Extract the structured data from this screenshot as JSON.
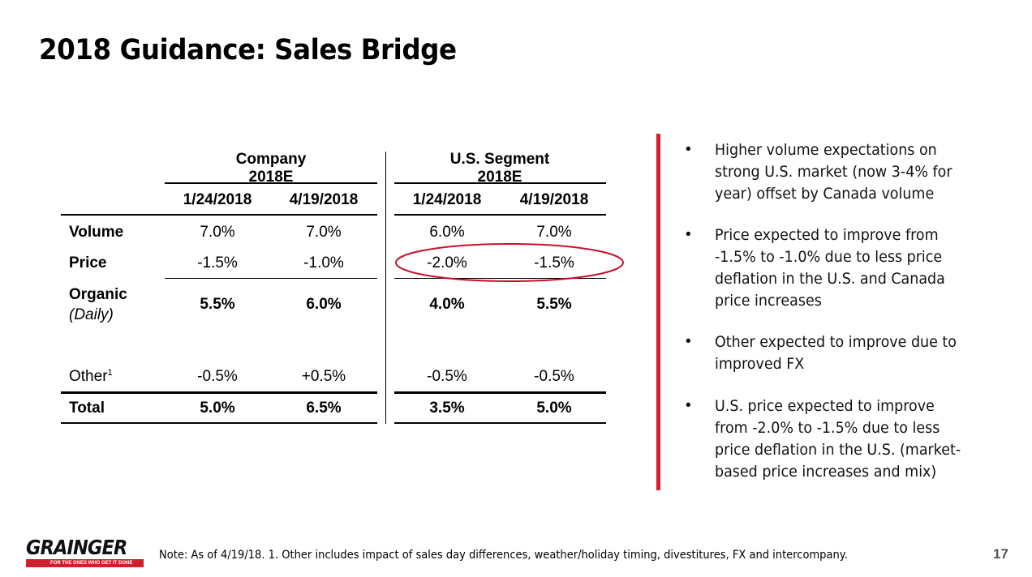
{
  "title": "2018 Guidance: Sales Bridge",
  "table": {
    "groups": [
      "Company 2018E",
      "U.S. Segment 2018E"
    ],
    "dates": [
      "1/24/2018",
      "4/19/2018",
      "1/24/2018",
      "4/19/2018"
    ],
    "rows": [
      {
        "label": "Volume",
        "values": [
          "7.0%",
          "7.0%",
          "6.0%",
          "7.0%"
        ]
      },
      {
        "label": "Price",
        "values": [
          "-1.5%",
          "-1.0%",
          "-2.0%",
          "-1.5%"
        ]
      },
      {
        "label": "Organic",
        "sublabel": "(Daily)",
        "values": [
          "5.5%",
          "6.0%",
          "4.0%",
          "5.5%"
        ]
      },
      {
        "label": "Other",
        "sup": "1",
        "values": [
          "-0.5%",
          "+0.5%",
          "-0.5%",
          "-0.5%"
        ]
      },
      {
        "label": "Total",
        "values": [
          "5.0%",
          "6.5%",
          "3.5%",
          "5.0%"
        ]
      }
    ]
  },
  "bullets": [
    "Higher volume expectations on strong U.S. market (now 3-4% for year) offset by Canada volume",
    "Price expected to improve from -1.5% to -1.0% due to less price deflation in the U.S. and Canada price increases",
    "Other expected to improve due to improved FX",
    "U.S. price expected to improve from -2.0% to -1.5% due to less price deflation in the U.S. (market-based price increases and mix)"
  ],
  "footer": {
    "note": "Note: As of 4/19/18.  1. Other includes impact of sales day differences, weather/holiday timing, divestitures, FX and intercompany.",
    "page": "17",
    "logo_name": "GRAINGER",
    "logo_tagline": "FOR THE ONES WHO GET IT DONE"
  },
  "colors": {
    "accent": "#d0202e"
  }
}
